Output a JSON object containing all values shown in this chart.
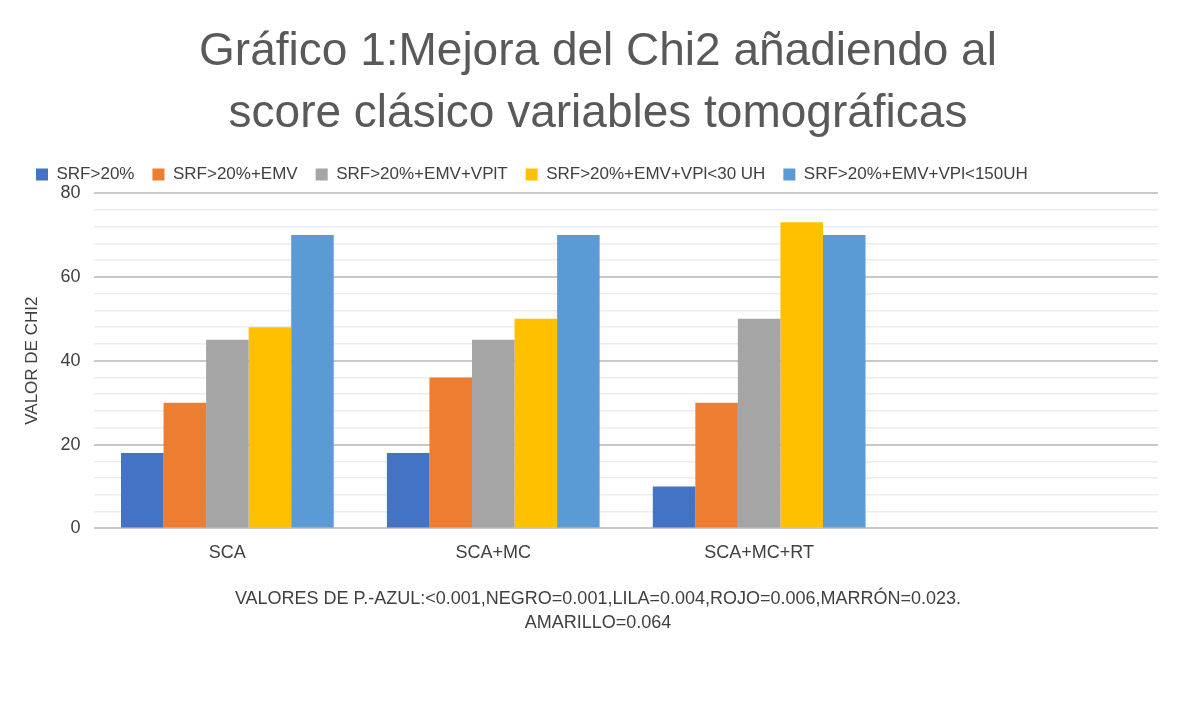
{
  "chart_data": {
    "type": "bar",
    "title": "Gráfico 1:Mejora del Chi2 añadiendo al score clásico  variables tomográficas",
    "ylabel": "VALOR DE CHI2",
    "categories": [
      "SCA",
      "SCA+MC",
      "SCA+MC+RT",
      null
    ],
    "series": [
      {
        "name": "SRF>20%",
        "color": "#4472c4",
        "values": [
          18,
          18,
          10,
          null
        ]
      },
      {
        "name": "SRF>20%+EMV",
        "color": "#ed7d31",
        "values": [
          30,
          36,
          30,
          null
        ]
      },
      {
        "name": "SRF>20%+EMV+VPlT",
        "color": "#a5a5a5",
        "values": [
          45,
          45,
          50,
          null
        ]
      },
      {
        "name": "SRF>20%+EMV+VPl<30 UH",
        "color": "#ffc000",
        "values": [
          48,
          50,
          73,
          null
        ]
      },
      {
        "name": "SRF>20%+EMV+VPl<150UH",
        "color": "#5b9bd5",
        "values": [
          70,
          70,
          70,
          null
        ]
      }
    ],
    "ylim": [
      0,
      80
    ],
    "yticks": [
      0,
      {
        "value": 4,
        "label": null
      },
      {
        "value": 8,
        "label": null
      },
      {
        "value": 12,
        "label": null
      },
      {
        "value": 16,
        "label": null
      },
      20,
      {
        "value": 24,
        "label": null
      },
      {
        "value": 28,
        "label": null
      },
      {
        "value": 32,
        "label": null
      },
      {
        "value": 36,
        "label": null
      },
      40,
      {
        "value": 44,
        "label": null
      },
      {
        "value": 48,
        "label": null
      },
      {
        "value": 52,
        "label": null
      },
      {
        "value": 56,
        "label": null
      },
      60,
      {
        "value": 64,
        "label": null
      },
      {
        "value": 68,
        "label": null
      },
      {
        "value": 72,
        "label": null
      },
      {
        "value": 76,
        "label": null
      },
      80
    ],
    "grid": "y",
    "legend": "top left",
    "annotations": [
      "VALORES DE P.-AZUL:<0.001,NEGRO=0.001,LILA=0.004,ROJO=0.006,MARRÓN=0.023.",
      "AMARILLO=0.064"
    ]
  }
}
